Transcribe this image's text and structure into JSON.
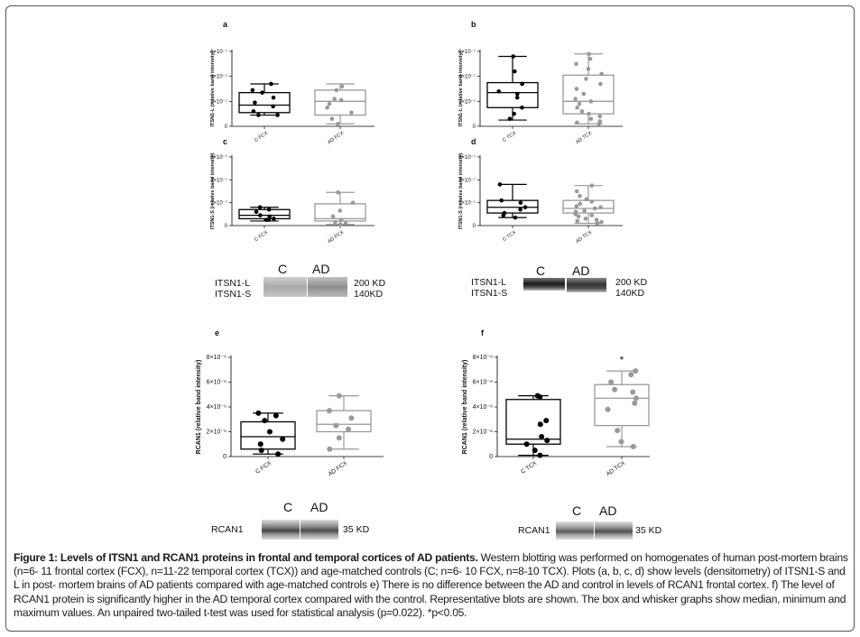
{
  "chart_data": [
    {
      "id": "a",
      "type": "boxplot",
      "label": "a",
      "ylabel": "ITSN1-L (relative band intensity)",
      "yticks": [
        "0",
        "2×10⁻⁷",
        "4×10⁻⁷",
        "6×10⁻⁷"
      ],
      "ylim": [
        0,
        6
      ],
      "categories": [
        "C FCX",
        "AD FCX"
      ],
      "series": [
        {
          "color": "#000000",
          "min": 0.9,
          "q1": 1.1,
          "median": 1.7,
          "q3": 2.7,
          "max": 3.4,
          "points": [
            3.4,
            2.9,
            2.7,
            2.3,
            1.9,
            1.6,
            1.2,
            0.9,
            0.9
          ]
        },
        {
          "color": "#999999",
          "min": 0.2,
          "q1": 0.9,
          "median": 2.0,
          "q3": 2.9,
          "max": 3.4,
          "points": [
            3.2,
            2.9,
            2.2,
            2.1,
            1.8,
            1.5,
            1.1,
            0.6,
            0.2
          ]
        }
      ]
    },
    {
      "id": "b",
      "type": "boxplot",
      "label": "b",
      "ylabel": "ITSN1-L (relative band intensity)",
      "yticks": [
        "0",
        "2×10⁻⁷",
        "4×10⁻⁷",
        "6×10⁻⁷"
      ],
      "ylim": [
        0,
        6
      ],
      "categories": [
        "C TCX",
        "AD TCX"
      ],
      "series": [
        {
          "color": "#000000",
          "min": 0.5,
          "q1": 1.5,
          "median": 2.7,
          "q3": 3.5,
          "max": 5.6,
          "points": [
            5.6,
            4.4,
            3.4,
            2.8,
            2.6,
            2.3,
            1.5,
            1.0,
            0.6
          ]
        },
        {
          "color": "#999999",
          "min": 0.2,
          "q1": 1.0,
          "median": 2.0,
          "q3": 4.1,
          "max": 5.8,
          "points": [
            5.8,
            5.4,
            5.0,
            4.6,
            4.2,
            3.8,
            3.4,
            3.0,
            2.6,
            2.2,
            2.0,
            1.8,
            1.5,
            1.2,
            1.0,
            0.8,
            0.6,
            0.4,
            0.3,
            0.2
          ]
        }
      ]
    },
    {
      "id": "c",
      "type": "boxplot",
      "label": "c",
      "ylabel": "ITSN1-S (relative band intensity)",
      "yticks": [
        "0",
        "2×10⁻⁷",
        "4×10⁻⁷",
        "6×10⁻⁷"
      ],
      "ylim": [
        0,
        6
      ],
      "categories": [
        "C FCX",
        "AD FCX"
      ],
      "series": [
        {
          "color": "#000000",
          "min": 0.4,
          "q1": 0.6,
          "median": 0.9,
          "q3": 1.4,
          "max": 1.6,
          "points": [
            1.6,
            1.4,
            1.2,
            0.9,
            0.8,
            0.6,
            0.5,
            0.5
          ]
        },
        {
          "color": "#999999",
          "min": 0.1,
          "q1": 0.4,
          "median": 0.6,
          "q3": 1.9,
          "max": 2.9,
          "points": [
            2.9,
            2.0,
            1.3,
            0.8,
            0.5,
            0.3,
            0.2,
            0.1
          ]
        }
      ]
    },
    {
      "id": "d",
      "type": "boxplot",
      "label": "d",
      "ylabel": "ITSN1-S (relative band intensity)",
      "yticks": [
        "0",
        "2×10⁻⁷",
        "4×10⁻⁷",
        "6×10⁻⁷"
      ],
      "ylim": [
        0,
        6
      ],
      "categories": [
        "C TCX",
        "AD TCX"
      ],
      "series": [
        {
          "color": "#000000",
          "min": 0.7,
          "q1": 1.1,
          "median": 1.6,
          "q3": 2.2,
          "max": 3.6,
          "points": [
            3.6,
            2.2,
            2.0,
            1.6,
            1.4,
            1.1,
            0.9,
            0.7
          ]
        },
        {
          "color": "#999999",
          "min": 0.2,
          "q1": 1.1,
          "median": 1.5,
          "q3": 2.2,
          "max": 3.5,
          "points": [
            3.5,
            3.0,
            2.6,
            2.3,
            2.1,
            1.9,
            1.7,
            1.6,
            1.5,
            1.3,
            1.2,
            1.0,
            0.9,
            0.8,
            0.6,
            0.5,
            0.4,
            0.3,
            0.2
          ]
        }
      ]
    },
    {
      "id": "e",
      "type": "boxplot",
      "label": "e",
      "ylabel": "RCAN1 (relative band intensity)",
      "yticks": [
        "0",
        "2×10⁻⁶",
        "4×10⁻⁶",
        "6×10⁻⁶",
        "8×10⁻⁶"
      ],
      "ylim": [
        0,
        8
      ],
      "categories": [
        "C FCX",
        "AD FCX"
      ],
      "series": [
        {
          "color": "#000000",
          "min": 0.2,
          "q1": 0.6,
          "median": 1.6,
          "q3": 2.8,
          "max": 3.5,
          "points": [
            3.5,
            3.3,
            2.9,
            2.0,
            1.4,
            1.0,
            0.5,
            0.2
          ]
        },
        {
          "color": "#999999",
          "min": 0.6,
          "q1": 2.0,
          "median": 2.6,
          "q3": 3.7,
          "max": 4.9,
          "points": [
            4.9,
            3.7,
            3.1,
            2.5,
            2.2,
            1.5,
            0.6
          ]
        }
      ]
    },
    {
      "id": "f",
      "type": "boxplot",
      "label": "f",
      "annotation": "*",
      "ylabel": "RCAN1 (relative band intensity)",
      "yticks": [
        "0",
        "2×10⁻⁶",
        "4×10⁻⁶",
        "6×10⁻⁶",
        "8×10⁻⁶"
      ],
      "ylim": [
        0,
        8
      ],
      "categories": [
        "C TCX",
        "AD TCX"
      ],
      "series": [
        {
          "color": "#000000",
          "min": 0.1,
          "q1": 1.0,
          "median": 1.4,
          "q3": 4.6,
          "max": 4.9,
          "points": [
            4.9,
            4.8,
            2.9,
            2.6,
            1.6,
            1.3,
            1.0,
            0.5,
            0.1
          ]
        },
        {
          "color": "#999999",
          "min": 0.8,
          "q1": 2.5,
          "median": 4.7,
          "q3": 5.8,
          "max": 6.9,
          "points": [
            6.9,
            6.6,
            6.0,
            5.4,
            5.2,
            4.7,
            4.3,
            3.8,
            2.1,
            1.2,
            0.8
          ]
        }
      ]
    }
  ],
  "blots": [
    {
      "id": "fcx-itsn",
      "header_c": "C",
      "header_ad": "AD",
      "label_top": "ITSN1-L",
      "label_bottom": "ITSN1-S",
      "kd_top": "200 KD",
      "kd_bottom": "140KD"
    },
    {
      "id": "tcx-itsn",
      "header_c": "C",
      "header_ad": "AD",
      "label_top": "ITSN1-L",
      "label_bottom": "ITSN1-S",
      "kd_top": "200 KD",
      "kd_bottom": "140KD"
    },
    {
      "id": "fcx-rcan",
      "header_c": "C",
      "header_ad": "AD",
      "label": "RCAN1",
      "kd": "35 KD"
    },
    {
      "id": "tcx-rcan",
      "header_c": "C",
      "header_ad": "AD",
      "label": "RCAN1",
      "kd": "35 KD"
    }
  ],
  "caption": {
    "title": "Figure 1: Levels of ITSN1 and RCAN1 proteins in frontal and temporal cortices of AD patients.",
    "body": " Western blotting was performed on homogenates of human post-mortem brains (n=6- 11 frontal cortex (FCX), n=11-22 temporal cortex (TCX)) and age-matched controls (C; n=6- 10 FCX, n=8-10 TCX). Plots (a, b, c, d) show levels (densitometry) of ITSN1-S and L in post- mortem brains of AD patients compared with age-matched controls e) There is no difference between the AD and control in levels of RCAN1 frontal cortex. f) The level of RCAN1 protein is significantly higher in the AD temporal cortex compared with the control. Representative blots are shown. The box and whisker graphs show median, minimum and maximum values. An unpaired two-tailed t-test was used for statistical analysis (p=0.022). *p<0.05."
  }
}
